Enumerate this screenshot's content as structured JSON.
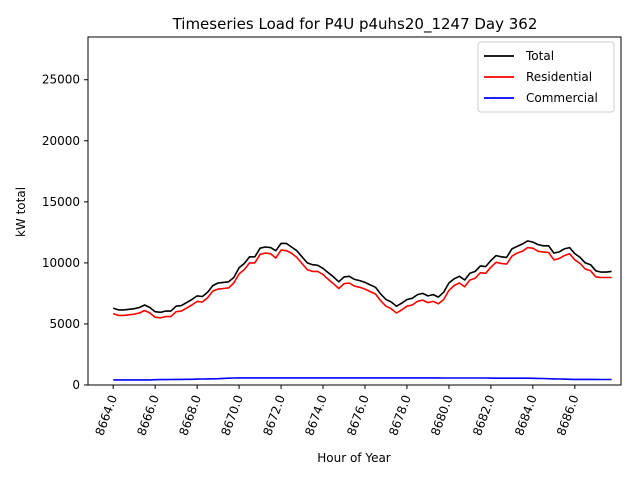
{
  "chart_data": {
    "type": "line",
    "title": "Timeseries Load for P4U p4uhs20_1247  Day 362",
    "xlabel": "Hour of Year",
    "ylabel": "kW total",
    "xlim": [
      8662.8,
      8688.2
    ],
    "ylim": [
      0,
      28500
    ],
    "xticks": [
      8664,
      8666,
      8668,
      8670,
      8672,
      8674,
      8676,
      8678,
      8680,
      8682,
      8684,
      8686
    ],
    "xtick_labels": [
      "8664.0",
      "8666.0",
      "8668.0",
      "8670.0",
      "8672.0",
      "8674.0",
      "8676.0",
      "8678.0",
      "8680.0",
      "8682.0",
      "8684.0",
      "8686.0"
    ],
    "yticks": [
      0,
      5000,
      10000,
      15000,
      20000,
      25000
    ],
    "ytick_labels": [
      "0",
      "5000",
      "10000",
      "15000",
      "20000",
      "25000"
    ],
    "legend_position": "top-right",
    "colors": {
      "Total": "#000000",
      "Residential": "#ff0000",
      "Commercial": "#0000ff"
    },
    "x": [
      8664.0,
      8664.25,
      8664.5,
      8664.75,
      8665.0,
      8665.25,
      8665.5,
      8665.75,
      8666.0,
      8666.25,
      8666.5,
      8666.75,
      8667.0,
      8667.25,
      8667.5,
      8667.75,
      8668.0,
      8668.25,
      8668.5,
      8668.75,
      8669.0,
      8669.25,
      8669.5,
      8669.75,
      8670.0,
      8670.25,
      8670.5,
      8670.75,
      8671.0,
      8671.25,
      8671.5,
      8671.75,
      8672.0,
      8672.25,
      8672.5,
      8672.75,
      8673.0,
      8673.25,
      8673.5,
      8673.75,
      8674.0,
      8674.25,
      8674.5,
      8674.75,
      8675.0,
      8675.25,
      8675.5,
      8675.75,
      8676.0,
      8676.25,
      8676.5,
      8676.75,
      8677.0,
      8677.25,
      8677.5,
      8677.75,
      8678.0,
      8678.25,
      8678.5,
      8678.75,
      8679.0,
      8679.25,
      8679.5,
      8679.75,
      8680.0,
      8680.25,
      8680.5,
      8680.75,
      8681.0,
      8681.25,
      8681.5,
      8681.75,
      8682.0,
      8682.25,
      8682.5,
      8682.75,
      8683.0,
      8683.25,
      8683.5,
      8683.75,
      8684.0,
      8684.25,
      8684.5,
      8684.75,
      8685.0,
      8685.25,
      8685.5,
      8685.75,
      8686.0,
      8686.25,
      8686.5,
      8686.75,
      8687.0,
      8687.25,
      8687.5,
      8687.75
    ],
    "series": [
      {
        "name": "Total",
        "values": [
          6300,
          6150,
          6150,
          6200,
          6250,
          6350,
          6550,
          6350,
          6000,
          5950,
          6050,
          6050,
          6450,
          6500,
          6750,
          7000,
          7300,
          7250,
          7600,
          8150,
          8350,
          8400,
          8450,
          8800,
          9600,
          9950,
          10500,
          10500,
          11200,
          11300,
          11250,
          11000,
          11600,
          11600,
          11300,
          11000,
          10500,
          10000,
          9850,
          9800,
          9550,
          9200,
          8850,
          8450,
          8850,
          8900,
          8650,
          8550,
          8400,
          8200,
          8000,
          7450,
          7000,
          6800,
          6450,
          6700,
          7000,
          7100,
          7400,
          7500,
          7300,
          7400,
          7200,
          7600,
          8350,
          8700,
          8900,
          8600,
          9150,
          9300,
          9750,
          9700,
          10200,
          10600,
          10500,
          10450,
          11150,
          11350,
          11550,
          11800,
          11700,
          11500,
          11400,
          11400,
          10800,
          10900,
          11150,
          11250,
          10750,
          10450,
          10000,
          9850,
          9350,
          9250,
          9250,
          9300
        ]
      },
      {
        "name": "Residential",
        "values": [
          5850,
          5700,
          5700,
          5750,
          5800,
          5900,
          6100,
          5900,
          5550,
          5500,
          5600,
          5600,
          6000,
          6050,
          6300,
          6550,
          6850,
          6800,
          7150,
          7700,
          7850,
          7900,
          7950,
          8350,
          9100,
          9450,
          10000,
          10000,
          10700,
          10800,
          10750,
          10400,
          11050,
          11000,
          10800,
          10450,
          9950,
          9450,
          9300,
          9300,
          9050,
          8650,
          8300,
          7900,
          8300,
          8350,
          8100,
          8000,
          7850,
          7650,
          7450,
          6900,
          6450,
          6250,
          5900,
          6150,
          6450,
          6550,
          6850,
          6950,
          6750,
          6850,
          6650,
          7000,
          7750,
          8150,
          8350,
          8050,
          8600,
          8750,
          9200,
          9150,
          9650,
          10050,
          9950,
          9900,
          10550,
          10800,
          10950,
          11250,
          11200,
          10950,
          10900,
          10850,
          10250,
          10350,
          10600,
          10750,
          10250,
          9950,
          9500,
          9350,
          8850,
          8800,
          8800,
          8800
        ]
      },
      {
        "name": "Commercial",
        "values": [
          420,
          420,
          420,
          420,
          420,
          420,
          420,
          420,
          430,
          440,
          440,
          450,
          460,
          460,
          470,
          470,
          480,
          490,
          500,
          510,
          520,
          540,
          560,
          570,
          580,
          580,
          580,
          580,
          580,
          580,
          580,
          580,
          580,
          580,
          580,
          580,
          580,
          580,
          580,
          580,
          580,
          580,
          580,
          580,
          580,
          580,
          580,
          580,
          580,
          580,
          580,
          580,
          580,
          580,
          580,
          580,
          580,
          580,
          580,
          580,
          580,
          580,
          580,
          575,
          570,
          570,
          570,
          570,
          570,
          570,
          570,
          570,
          565,
          560,
          560,
          560,
          560,
          560,
          560,
          555,
          550,
          540,
          530,
          520,
          500,
          490,
          480,
          470,
          460,
          460,
          460,
          460,
          460,
          450,
          450,
          450
        ]
      }
    ]
  }
}
